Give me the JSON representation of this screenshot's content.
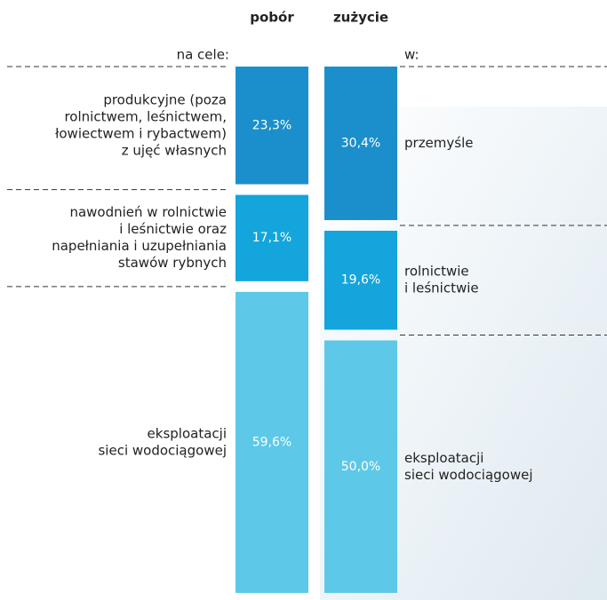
{
  "chart_data": {
    "type": "stacked-column",
    "columns": [
      {
        "name": "pobór",
        "heading": "na cele:",
        "labels": [
          [
            "produkcyjne (poza",
            "rolnictwem, leśnictwem,",
            "łowiectwem i rybactwem)",
            "z ujęć własnych"
          ],
          [
            "nawodnień w rolnictwie",
            "i leśnictwie oraz",
            "napełniania i uzupełniania",
            "stawów rybnych"
          ],
          [
            "eksploatacji",
            "sieci wodociągowej"
          ]
        ],
        "values": [
          23.3,
          17.1,
          59.6
        ],
        "value_labels": [
          "23,3%",
          "17,1%",
          "59,6%"
        ],
        "colors": [
          "#1b8fcb",
          "#13a5dc",
          "#5ec8e8"
        ]
      },
      {
        "name": "zużycie",
        "heading": "w:",
        "labels": [
          [
            "przemyśle"
          ],
          [
            "rolnictwie",
            "i leśnictwie"
          ],
          [
            "eksploatacji",
            "sieci wodociągowej"
          ]
        ],
        "values": [
          30.4,
          19.6,
          50.0
        ],
        "value_labels": [
          "30,4%",
          "19,6%",
          "50,0%"
        ],
        "colors": [
          "#1b8fcb",
          "#13a5dc",
          "#5ec8e8"
        ]
      }
    ]
  }
}
